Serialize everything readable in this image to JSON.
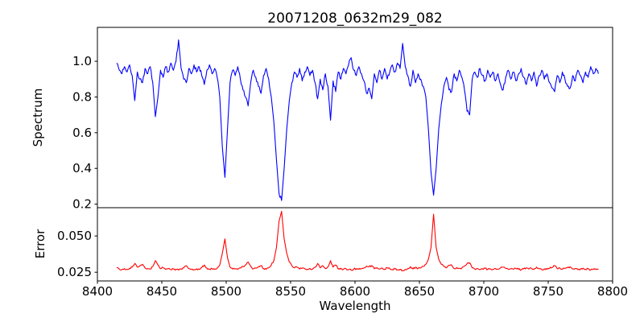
{
  "figure": {
    "title": "20071208_0632m29_082",
    "background": "#ffffff"
  },
  "x_axis": {
    "label": "Wavelength",
    "tick_values": [
      8400,
      8450,
      8500,
      8550,
      8600,
      8650,
      8700,
      8750,
      8800
    ],
    "tick_labels": [
      "8400",
      "8450",
      "8500",
      "8550",
      "8600",
      "8650",
      "8700",
      "8750",
      "8800"
    ]
  },
  "chart_data": [
    {
      "type": "line",
      "title": "20071208_0632m29_082",
      "ylabel": "Spectrum",
      "line_color": "#0000ff",
      "xlim": [
        8400,
        8800
      ],
      "ylim": [
        0.18,
        1.19
      ],
      "yticks": [
        0.2,
        0.4,
        0.6,
        0.8,
        1.0
      ],
      "ytick_labels": [
        "0.2",
        "0.4",
        "0.6",
        "0.8",
        "1.0"
      ],
      "grid": false,
      "x_start": 8415,
      "x_step": 2,
      "notable_absorption_lines": [
        8429,
        8445,
        8498,
        8517,
        8542,
        8580,
        8662,
        8688
      ],
      "values": [
        0.99,
        0.95,
        0.93,
        0.97,
        0.94,
        0.98,
        0.92,
        0.78,
        0.94,
        0.9,
        0.88,
        0.96,
        0.93,
        0.97,
        0.88,
        0.69,
        0.8,
        0.95,
        0.91,
        0.97,
        0.94,
        0.99,
        0.95,
        1.0,
        1.12,
        0.96,
        0.9,
        0.88,
        0.96,
        0.93,
        0.98,
        0.94,
        0.97,
        0.92,
        0.87,
        0.95,
        0.98,
        0.93,
        0.96,
        0.91,
        0.8,
        0.52,
        0.35,
        0.62,
        0.88,
        0.95,
        0.92,
        0.97,
        0.9,
        0.84,
        0.8,
        0.75,
        0.88,
        0.95,
        0.91,
        0.86,
        0.82,
        0.92,
        0.96,
        0.9,
        0.8,
        0.66,
        0.45,
        0.26,
        0.22,
        0.4,
        0.62,
        0.78,
        0.88,
        0.94,
        0.91,
        0.96,
        0.89,
        0.94,
        0.97,
        0.92,
        0.95,
        0.88,
        0.79,
        0.9,
        0.84,
        0.93,
        0.86,
        0.67,
        0.89,
        0.83,
        0.94,
        0.9,
        0.96,
        0.93,
        0.98,
        1.02,
        0.95,
        0.92,
        0.97,
        0.93,
        0.89,
        0.82,
        0.85,
        0.79,
        0.93,
        0.88,
        0.95,
        0.9,
        0.96,
        0.9,
        0.94,
        0.98,
        0.94,
        0.99,
        0.96,
        1.1,
        0.97,
        0.92,
        0.86,
        0.95,
        0.88,
        0.93,
        0.9,
        0.86,
        0.8,
        0.62,
        0.38,
        0.25,
        0.4,
        0.62,
        0.76,
        0.86,
        0.91,
        0.84,
        0.83,
        0.93,
        0.89,
        0.95,
        0.91,
        0.84,
        0.72,
        0.7,
        0.9,
        0.94,
        0.91,
        0.96,
        0.92,
        0.89,
        0.95,
        0.91,
        0.94,
        0.89,
        0.93,
        0.87,
        0.84,
        0.91,
        0.95,
        0.9,
        0.94,
        0.89,
        0.93,
        0.96,
        0.91,
        0.87,
        0.93,
        0.89,
        0.94,
        0.86,
        0.92,
        0.95,
        0.9,
        0.93,
        0.88,
        0.85,
        0.83,
        0.92,
        0.88,
        0.94,
        0.9,
        0.86,
        0.85,
        0.92,
        0.89,
        0.95,
        0.92,
        0.88,
        0.94,
        0.91,
        0.97,
        0.93,
        0.96,
        0.93
      ]
    },
    {
      "type": "line",
      "ylabel": "Error",
      "line_color": "#ff0000",
      "xlim": [
        8400,
        8800
      ],
      "ylim": [
        0.019,
        0.0695
      ],
      "yticks": [
        0.025,
        0.05
      ],
      "ytick_labels": [
        "0.025",
        "0.050"
      ],
      "grid": false,
      "x_start": 8415,
      "x_step": 2,
      "values": [
        0.028,
        0.0272,
        0.0268,
        0.0275,
        0.027,
        0.0278,
        0.0285,
        0.031,
        0.0285,
        0.0295,
        0.0305,
        0.028,
        0.0275,
        0.0272,
        0.029,
        0.033,
        0.03,
        0.0275,
        0.0282,
        0.027,
        0.0275,
        0.0268,
        0.0272,
        0.027,
        0.0265,
        0.0272,
        0.028,
        0.0295,
        0.0275,
        0.027,
        0.0268,
        0.0273,
        0.027,
        0.0282,
        0.03,
        0.0278,
        0.027,
        0.0274,
        0.027,
        0.0278,
        0.03,
        0.038,
        0.048,
        0.035,
        0.0285,
        0.0272,
        0.0275,
        0.027,
        0.028,
        0.029,
        0.03,
        0.032,
        0.029,
        0.0273,
        0.0278,
        0.0288,
        0.0295,
        0.0275,
        0.027,
        0.028,
        0.03,
        0.033,
        0.042,
        0.06,
        0.067,
        0.048,
        0.038,
        0.032,
        0.0295,
        0.028,
        0.0285,
        0.0272,
        0.028,
        0.0274,
        0.027,
        0.0276,
        0.0272,
        0.0285,
        0.031,
        0.028,
        0.0295,
        0.0275,
        0.0288,
        0.033,
        0.0285,
        0.03,
        0.0272,
        0.0278,
        0.027,
        0.0274,
        0.0268,
        0.0265,
        0.0272,
        0.0275,
        0.027,
        0.0274,
        0.028,
        0.0292,
        0.0288,
        0.0296,
        0.0274,
        0.0282,
        0.0272,
        0.028,
        0.027,
        0.028,
        0.0274,
        0.0268,
        0.0273,
        0.0267,
        0.027,
        0.0262,
        0.027,
        0.0276,
        0.0288,
        0.0272,
        0.0285,
        0.0276,
        0.028,
        0.029,
        0.0305,
        0.034,
        0.042,
        0.065,
        0.042,
        0.034,
        0.0305,
        0.029,
        0.028,
        0.0298,
        0.03,
        0.0275,
        0.0282,
        0.0276,
        0.028,
        0.0292,
        0.031,
        0.0315,
        0.028,
        0.0272,
        0.0276,
        0.0268,
        0.0273,
        0.0277,
        0.027,
        0.0274,
        0.027,
        0.0276,
        0.0271,
        0.028,
        0.0285,
        0.0276,
        0.027,
        0.0275,
        0.027,
        0.0276,
        0.0271,
        0.0268,
        0.0273,
        0.028,
        0.0272,
        0.0277,
        0.027,
        0.0285,
        0.0273,
        0.0268,
        0.0274,
        0.027,
        0.0277,
        0.0283,
        0.0295,
        0.0274,
        0.028,
        0.027,
        0.0275,
        0.0282,
        0.0288,
        0.0272,
        0.0276,
        0.0268,
        0.0271,
        0.0278,
        0.027,
        0.0274,
        0.0266,
        0.027,
        0.0273,
        0.0268
      ]
    }
  ]
}
